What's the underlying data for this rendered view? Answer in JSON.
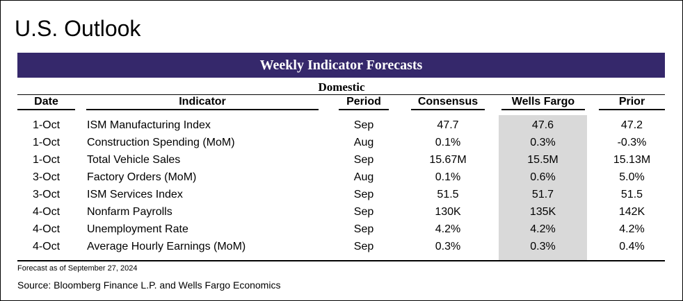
{
  "page": {
    "title": "U.S. Outlook",
    "banner": "Weekly Indicator Forecasts",
    "section": "Domestic",
    "footnote": "Forecast as of September 27, 2024",
    "source": "Source: Bloomberg Finance L.P. and Wells Fargo Economics"
  },
  "colors": {
    "banner_bg": "#35286b",
    "wf_highlight": "#d9d9d9"
  },
  "table": {
    "headers": {
      "date": "Date",
      "indicator": "Indicator",
      "period": "Period",
      "consensus": "Consensus",
      "wells_fargo": "Wells Fargo",
      "prior": "Prior"
    },
    "rows": [
      {
        "date": "1-Oct",
        "indicator": "ISM Manufacturing Index",
        "period": "Sep",
        "consensus": "47.7",
        "wells_fargo": "47.6",
        "prior": "47.2"
      },
      {
        "date": "1-Oct",
        "indicator": "Construction Spending (MoM)",
        "period": "Aug",
        "consensus": "0.1%",
        "wells_fargo": "0.3%",
        "prior": "-0.3%"
      },
      {
        "date": "1-Oct",
        "indicator": "Total Vehicle Sales",
        "period": "Sep",
        "consensus": "15.67M",
        "wells_fargo": "15.5M",
        "prior": "15.13M"
      },
      {
        "date": "3-Oct",
        "indicator": "Factory Orders (MoM)",
        "period": "Aug",
        "consensus": "0.1%",
        "wells_fargo": "0.6%",
        "prior": "5.0%"
      },
      {
        "date": "3-Oct",
        "indicator": "ISM Services Index",
        "period": "Sep",
        "consensus": "51.5",
        "wells_fargo": "51.7",
        "prior": "51.5"
      },
      {
        "date": "4-Oct",
        "indicator": "Nonfarm Payrolls",
        "period": "Sep",
        "consensus": "130K",
        "wells_fargo": "135K",
        "prior": "142K"
      },
      {
        "date": "4-Oct",
        "indicator": "Unemployment Rate",
        "period": "Sep",
        "consensus": "4.2%",
        "wells_fargo": "4.2%",
        "prior": "4.2%"
      },
      {
        "date": "4-Oct",
        "indicator": "Average Hourly Earnings (MoM)",
        "period": "Sep",
        "consensus": "0.3%",
        "wells_fargo": "0.3%",
        "prior": "0.4%"
      }
    ]
  }
}
